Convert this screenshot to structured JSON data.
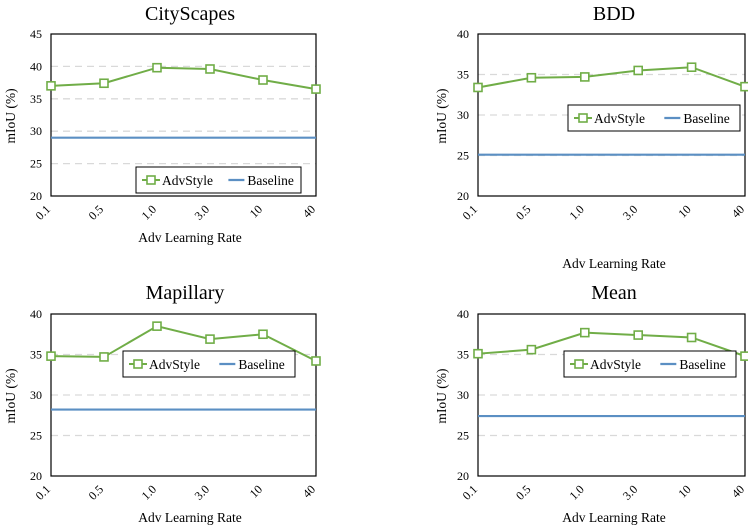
{
  "colors": {
    "advstyle": "#70ad47",
    "baseline": "#5b8fc3",
    "grid": "#d9d9d9",
    "axis": "#000000"
  },
  "chart_data": [
    {
      "type": "line",
      "title": "CityScapes",
      "xlabel": "Adv Learning Rate",
      "ylabel": "mIoU (%)",
      "categories": [
        "0.1",
        "0.5",
        "1.0",
        "3.0",
        "10",
        "40"
      ],
      "ylim": [
        20,
        45
      ],
      "yticks": [
        "20",
        "25",
        "30",
        "35",
        "40",
        "45"
      ],
      "grid": "horizontal-dashed",
      "legend": "lower-right",
      "series": [
        {
          "name": "AdvStyle",
          "values": [
            37.0,
            37.4,
            39.8,
            39.6,
            37.9,
            36.5
          ],
          "marker": "square"
        },
        {
          "name": "Baseline",
          "values": [
            29.0,
            29.0,
            29.0,
            29.0,
            29.0,
            29.0
          ],
          "marker": "none"
        }
      ]
    },
    {
      "type": "line",
      "title": "BDD",
      "xlabel": "Adv Learning Rate",
      "ylabel": "mIoU (%)",
      "categories": [
        "0.1",
        "0.5",
        "1.0",
        "3.0",
        "10",
        "40"
      ],
      "ylim": [
        20,
        40
      ],
      "yticks": [
        "20",
        "25",
        "30",
        "35",
        "40"
      ],
      "grid": "horizontal-dashed",
      "legend": "center-right",
      "series": [
        {
          "name": "AdvStyle",
          "values": [
            33.4,
            34.6,
            34.7,
            35.5,
            35.9,
            33.5
          ],
          "marker": "square"
        },
        {
          "name": "Baseline",
          "values": [
            25.1,
            25.1,
            25.1,
            25.1,
            25.1,
            25.1
          ],
          "marker": "none"
        }
      ]
    },
    {
      "type": "line",
      "title": "Mapillary",
      "xlabel": "Adv Learning Rate",
      "ylabel": "mIoU (%)",
      "categories": [
        "0.1",
        "0.5",
        "1.0",
        "3.0",
        "10",
        "40"
      ],
      "ylim": [
        20,
        40
      ],
      "yticks": [
        "20",
        "25",
        "30",
        "35",
        "40"
      ],
      "grid": "horizontal-dashed",
      "legend": "center-right",
      "series": [
        {
          "name": "AdvStyle",
          "values": [
            34.8,
            34.7,
            38.5,
            36.9,
            37.5,
            34.2
          ],
          "marker": "square"
        },
        {
          "name": "Baseline",
          "values": [
            28.2,
            28.2,
            28.2,
            28.2,
            28.2,
            28.2
          ],
          "marker": "none"
        }
      ]
    },
    {
      "type": "line",
      "title": "Mean",
      "xlabel": "Adv Learning Rate",
      "ylabel": "mIoU (%)",
      "categories": [
        "0.1",
        "0.5",
        "1.0",
        "3.0",
        "10",
        "40"
      ],
      "ylim": [
        20,
        40
      ],
      "yticks": [
        "20",
        "25",
        "30",
        "35",
        "40"
      ],
      "grid": "horizontal-dashed",
      "legend": "center-right",
      "series": [
        {
          "name": "AdvStyle",
          "values": [
            35.1,
            35.6,
            37.7,
            37.4,
            37.1,
            34.8
          ],
          "marker": "square"
        },
        {
          "name": "Baseline",
          "values": [
            27.4,
            27.4,
            27.4,
            27.4,
            27.4,
            27.4
          ],
          "marker": "none"
        }
      ]
    }
  ]
}
